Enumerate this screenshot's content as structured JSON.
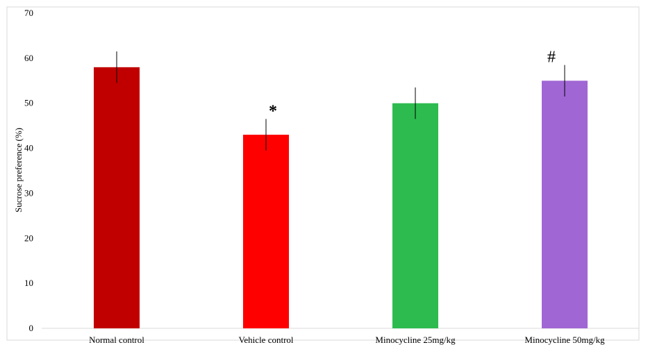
{
  "chart_data": {
    "type": "bar",
    "title": "",
    "xlabel": "",
    "ylabel": "Sucrose preference (%)",
    "ylim": [
      0,
      70
    ],
    "yticks": [
      0,
      10,
      20,
      30,
      40,
      50,
      60,
      70
    ],
    "grid": false,
    "legend": "none",
    "categories": [
      "Normal control",
      "Vehicle control",
      "Minocycline 25mg/kg",
      "Minocycline 50mg/kg"
    ],
    "values": [
      58,
      43,
      50,
      55
    ],
    "errors": [
      3.5,
      3.5,
      3.5,
      3.5
    ],
    "annotations": [
      "",
      "*",
      "",
      "#"
    ],
    "colors": [
      "#c00000",
      "#ff0000",
      "#2dbb4f",
      "#a066d3"
    ]
  }
}
